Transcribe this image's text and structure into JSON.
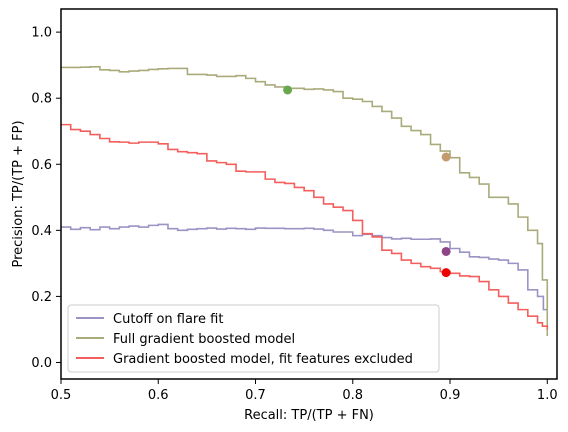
{
  "chart_data": {
    "type": "line",
    "xlabel": "Recall: TP/(TP + FN)",
    "ylabel": "Precision: TP/(TP + FP)",
    "xlim": [
      0.5,
      1.01
    ],
    "ylim": [
      -0.05,
      1.07
    ],
    "xticks": [
      0.5,
      0.6,
      0.7,
      0.8,
      0.9,
      1.0
    ],
    "xtick_labels": [
      "0.5",
      "0.6",
      "0.7",
      "0.8",
      "0.9",
      "1.0"
    ],
    "yticks": [
      0.0,
      0.2,
      0.4,
      0.6,
      0.8,
      1.0
    ],
    "ytick_labels": [
      "0.0",
      "0.2",
      "0.4",
      "0.6",
      "0.8",
      "1.0"
    ],
    "grid": false,
    "legend_position": "lower-left",
    "series": [
      {
        "name": "Cutoff on flare fit",
        "color": "#9b93c4",
        "x": [
          0.5,
          0.51,
          0.52,
          0.53,
          0.54,
          0.55,
          0.56,
          0.57,
          0.58,
          0.59,
          0.6,
          0.61,
          0.62,
          0.63,
          0.64,
          0.65,
          0.66,
          0.67,
          0.68,
          0.69,
          0.7,
          0.71,
          0.72,
          0.73,
          0.74,
          0.75,
          0.76,
          0.77,
          0.78,
          0.79,
          0.8,
          0.81,
          0.82,
          0.83,
          0.84,
          0.85,
          0.86,
          0.87,
          0.88,
          0.89,
          0.9,
          0.91,
          0.92,
          0.93,
          0.94,
          0.95,
          0.96,
          0.97,
          0.98,
          0.99,
          0.993,
          0.996,
          1.0
        ],
        "y": [
          0.41,
          0.403,
          0.408,
          0.402,
          0.41,
          0.405,
          0.41,
          0.413,
          0.41,
          0.415,
          0.418,
          0.405,
          0.4,
          0.403,
          0.405,
          0.407,
          0.404,
          0.406,
          0.405,
          0.403,
          0.407,
          0.406,
          0.406,
          0.405,
          0.405,
          0.406,
          0.404,
          0.4,
          0.395,
          0.395,
          0.384,
          0.388,
          0.384,
          0.378,
          0.374,
          0.376,
          0.373,
          0.373,
          0.374,
          0.365,
          0.345,
          0.334,
          0.32,
          0.318,
          0.313,
          0.31,
          0.3,
          0.28,
          0.22,
          0.2,
          0.2,
          0.16,
          0.16
        ]
      },
      {
        "name": "Full gradient boosted model",
        "color": "#a9ab7a",
        "x": [
          0.5,
          0.51,
          0.52,
          0.53,
          0.54,
          0.55,
          0.56,
          0.57,
          0.58,
          0.59,
          0.6,
          0.61,
          0.62,
          0.63,
          0.64,
          0.65,
          0.66,
          0.67,
          0.68,
          0.69,
          0.7,
          0.71,
          0.72,
          0.73,
          0.74,
          0.75,
          0.76,
          0.77,
          0.78,
          0.79,
          0.8,
          0.81,
          0.82,
          0.83,
          0.84,
          0.85,
          0.86,
          0.87,
          0.88,
          0.89,
          0.9,
          0.91,
          0.92,
          0.93,
          0.94,
          0.95,
          0.96,
          0.97,
          0.98,
          0.99,
          0.995,
          1.0
        ],
        "y": [
          0.893,
          0.893,
          0.894,
          0.895,
          0.886,
          0.884,
          0.88,
          0.882,
          0.884,
          0.887,
          0.889,
          0.89,
          0.89,
          0.872,
          0.872,
          0.87,
          0.866,
          0.866,
          0.868,
          0.86,
          0.85,
          0.84,
          0.834,
          0.83,
          0.83,
          0.827,
          0.828,
          0.825,
          0.82,
          0.8,
          0.797,
          0.79,
          0.775,
          0.76,
          0.74,
          0.715,
          0.702,
          0.69,
          0.66,
          0.64,
          0.62,
          0.574,
          0.56,
          0.54,
          0.5,
          0.5,
          0.48,
          0.44,
          0.4,
          0.36,
          0.25,
          0.08
        ]
      },
      {
        "name": "Gradient boosted model, fit features excluded",
        "color": "#f25f5c",
        "x": [
          0.5,
          0.51,
          0.52,
          0.53,
          0.54,
          0.55,
          0.56,
          0.57,
          0.58,
          0.59,
          0.6,
          0.61,
          0.62,
          0.63,
          0.64,
          0.65,
          0.66,
          0.67,
          0.68,
          0.69,
          0.7,
          0.71,
          0.72,
          0.73,
          0.74,
          0.75,
          0.76,
          0.77,
          0.78,
          0.79,
          0.8,
          0.81,
          0.82,
          0.83,
          0.84,
          0.85,
          0.86,
          0.87,
          0.88,
          0.89,
          0.9,
          0.91,
          0.92,
          0.93,
          0.94,
          0.95,
          0.96,
          0.97,
          0.98,
          0.99,
          0.995,
          1.0
        ],
        "y": [
          0.72,
          0.705,
          0.7,
          0.69,
          0.678,
          0.668,
          0.667,
          0.664,
          0.667,
          0.667,
          0.662,
          0.645,
          0.638,
          0.635,
          0.632,
          0.61,
          0.605,
          0.6,
          0.579,
          0.577,
          0.577,
          0.555,
          0.545,
          0.542,
          0.53,
          0.52,
          0.5,
          0.48,
          0.47,
          0.46,
          0.43,
          0.39,
          0.38,
          0.34,
          0.33,
          0.31,
          0.3,
          0.29,
          0.285,
          0.275,
          0.27,
          0.262,
          0.26,
          0.245,
          0.22,
          0.2,
          0.18,
          0.16,
          0.14,
          0.12,
          0.11,
          0.1
        ]
      }
    ],
    "markers": [
      {
        "x": 0.733,
        "y": 0.825,
        "color": "#6aa84f"
      },
      {
        "x": 0.896,
        "y": 0.622,
        "color": "#c49a6c"
      },
      {
        "x": 0.896,
        "y": 0.336,
        "color": "#8e4585"
      },
      {
        "x": 0.896,
        "y": 0.272,
        "color": "#ee0000"
      }
    ]
  }
}
